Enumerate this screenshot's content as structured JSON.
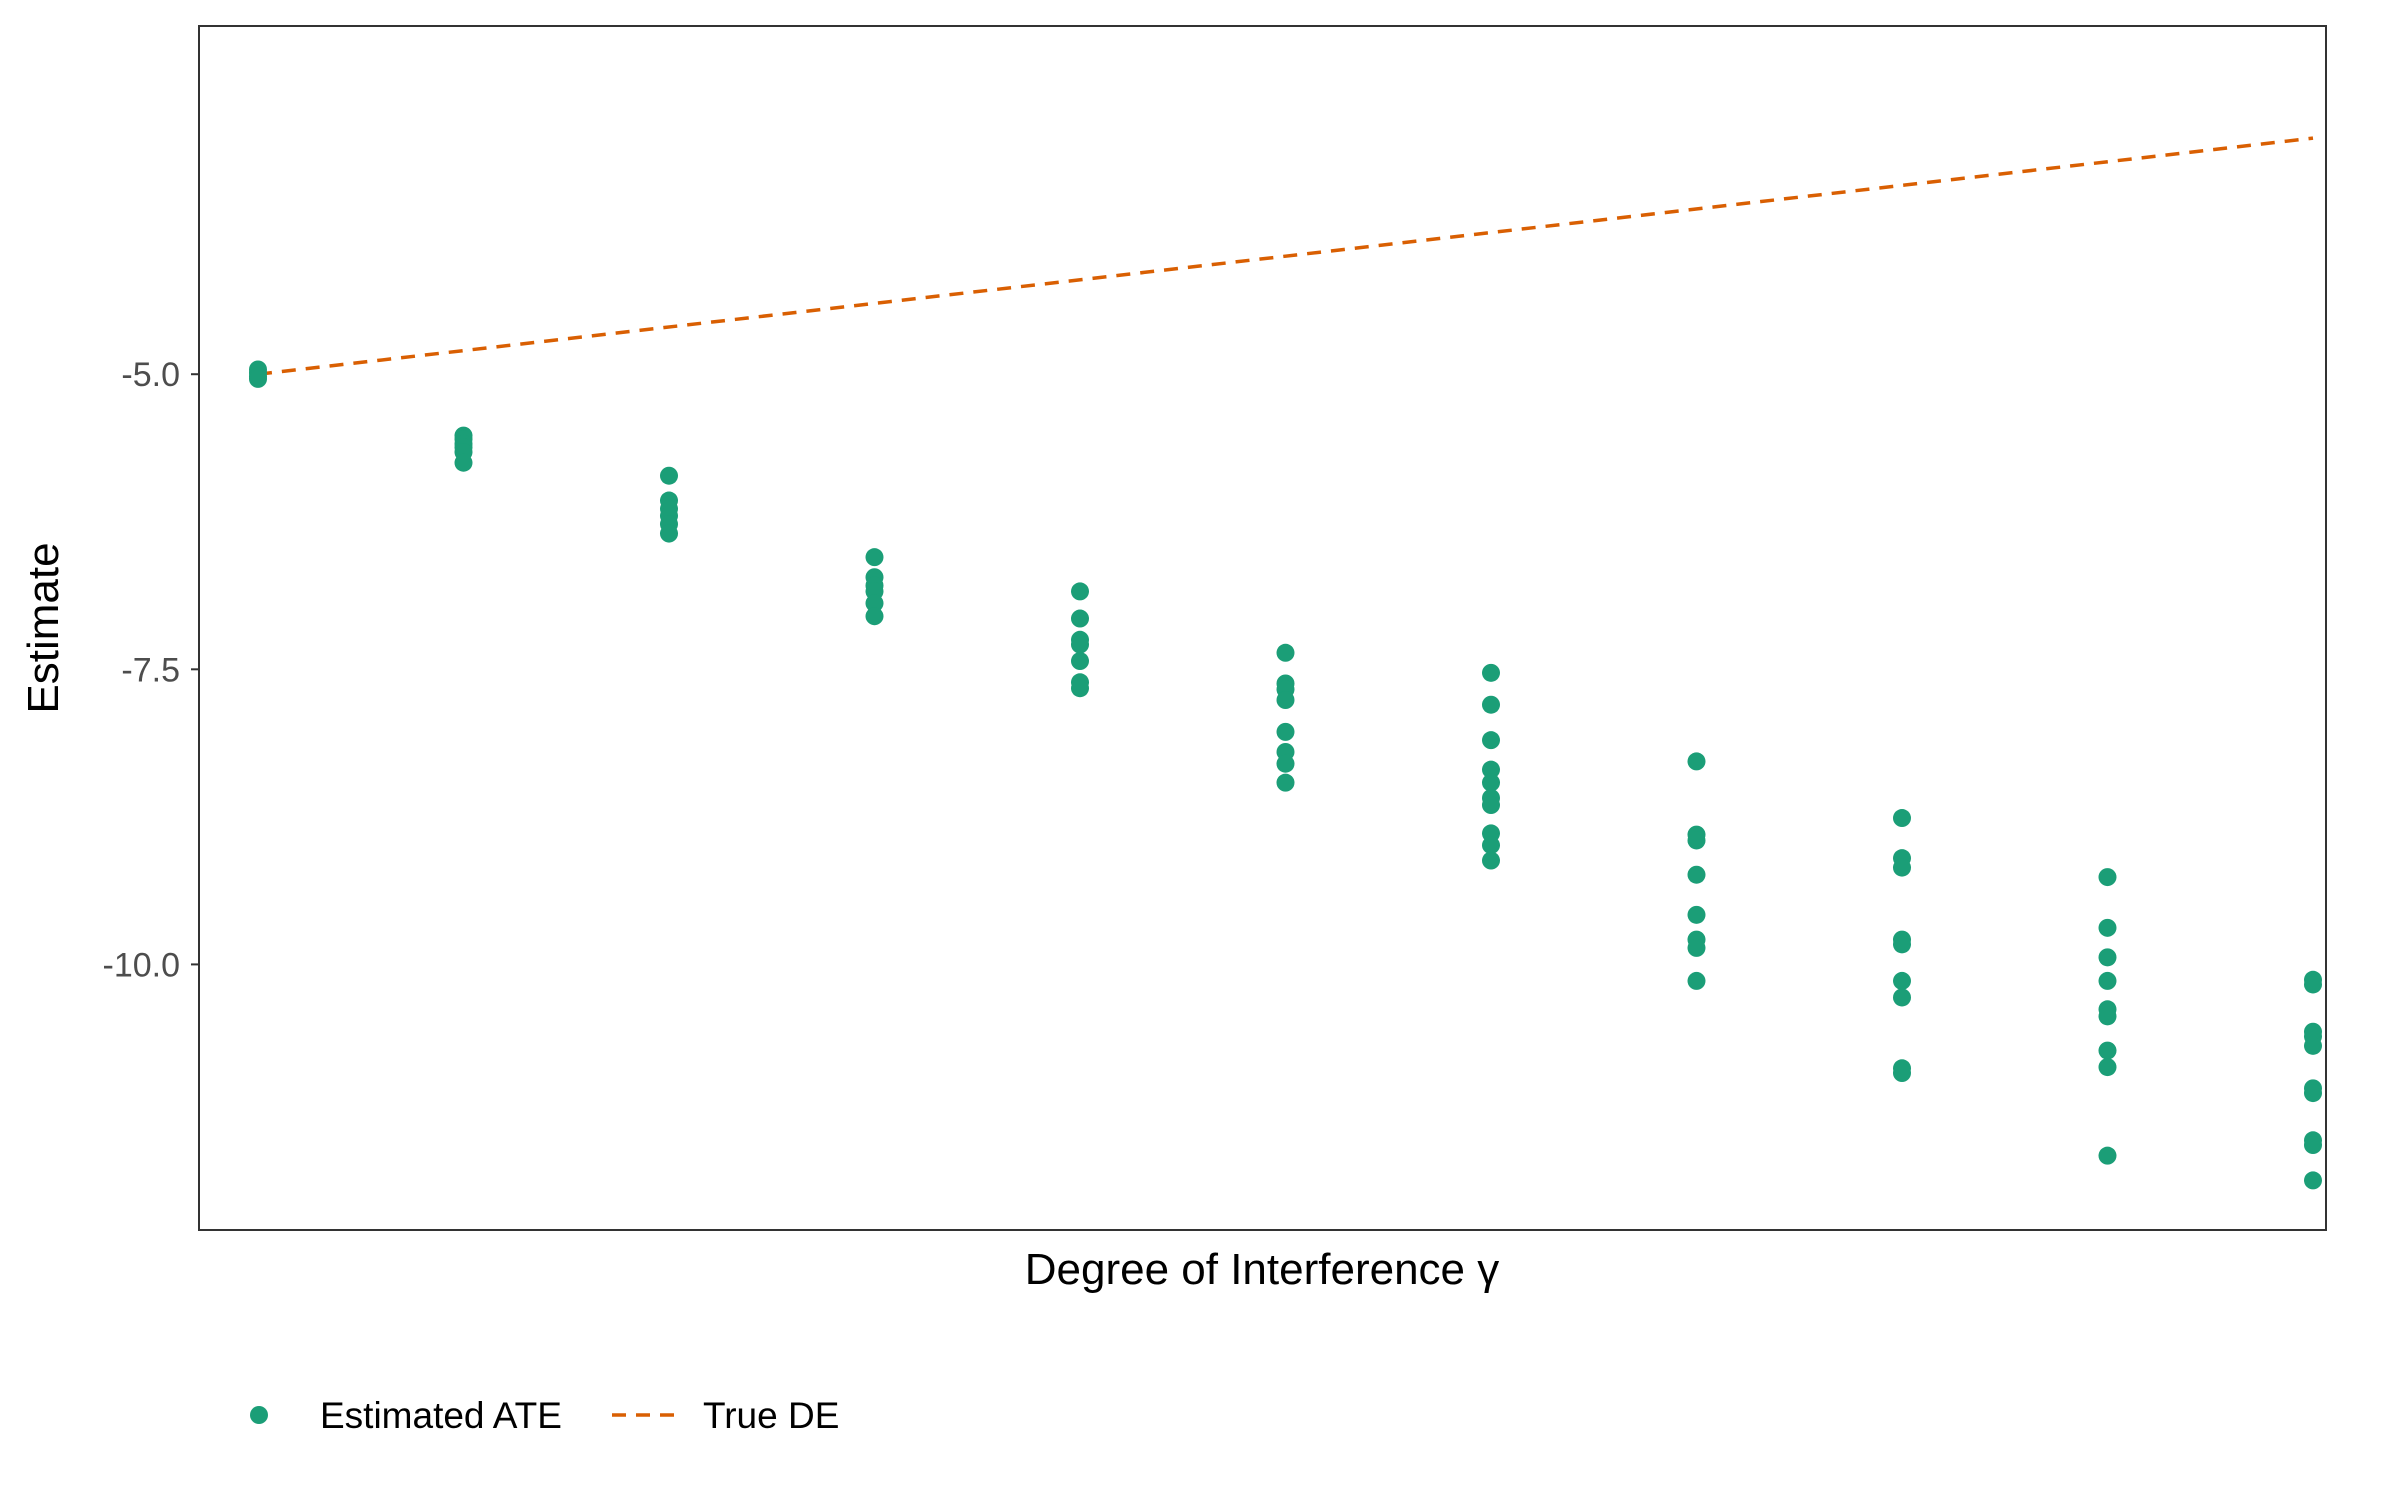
{
  "colors": {
    "points": "#1b9e77",
    "true_line": "#d95f02",
    "axis_text": "#4d4d4d",
    "frame": "#333333"
  },
  "chart_data": {
    "type": "scatter",
    "title": "",
    "xlabel": "Degree of Interference γ",
    "ylabel": "Estimate",
    "xlim": [
      0.0,
      1.0
    ],
    "ylim": [
      -12.25,
      -2.05
    ],
    "y_ticks": [
      {
        "value": -5.0,
        "label": "-5.0"
      },
      {
        "value": -7.5,
        "label": "-7.5"
      },
      {
        "value": -10.0,
        "label": "-10.0"
      }
    ],
    "x_ticks_shown": false,
    "grid": false,
    "legend": {
      "position": "bottom-left",
      "entries": [
        {
          "label": "Estimated ATE",
          "marker": "point"
        },
        {
          "label": "True DE",
          "marker": "dashed-line"
        }
      ]
    },
    "series": [
      {
        "name": "Estimated ATE",
        "kind": "points",
        "points": [
          [
            0.0,
            -4.96
          ],
          [
            0.0,
            -4.99
          ],
          [
            0.0,
            -5.02
          ],
          [
            0.0,
            -5.04
          ],
          [
            0.1,
            -5.52
          ],
          [
            0.1,
            -5.55
          ],
          [
            0.1,
            -5.59
          ],
          [
            0.1,
            -5.62
          ],
          [
            0.1,
            -5.66
          ],
          [
            0.1,
            -5.75
          ],
          [
            0.2,
            -5.86
          ],
          [
            0.2,
            -6.07
          ],
          [
            0.2,
            -6.14
          ],
          [
            0.2,
            -6.2
          ],
          [
            0.2,
            -6.27
          ],
          [
            0.2,
            -6.35
          ],
          [
            0.3,
            -6.55
          ],
          [
            0.3,
            -6.72
          ],
          [
            0.3,
            -6.79
          ],
          [
            0.3,
            -6.84
          ],
          [
            0.3,
            -6.94
          ],
          [
            0.3,
            -7.05
          ],
          [
            0.4,
            -6.84
          ],
          [
            0.4,
            -7.07
          ],
          [
            0.4,
            -7.25
          ],
          [
            0.4,
            -7.29
          ],
          [
            0.4,
            -7.43
          ],
          [
            0.4,
            -7.61
          ],
          [
            0.4,
            -7.66
          ],
          [
            0.5,
            -7.36
          ],
          [
            0.5,
            -7.62
          ],
          [
            0.5,
            -7.67
          ],
          [
            0.5,
            -7.76
          ],
          [
            0.5,
            -8.03
          ],
          [
            0.5,
            -8.2
          ],
          [
            0.5,
            -8.3
          ],
          [
            0.5,
            -8.46
          ],
          [
            0.6,
            -7.53
          ],
          [
            0.6,
            -7.8
          ],
          [
            0.6,
            -8.1
          ],
          [
            0.6,
            -8.35
          ],
          [
            0.6,
            -8.46
          ],
          [
            0.6,
            -8.59
          ],
          [
            0.6,
            -8.65
          ],
          [
            0.6,
            -8.89
          ],
          [
            0.6,
            -8.99
          ],
          [
            0.6,
            -9.12
          ],
          [
            0.7,
            -8.28
          ],
          [
            0.7,
            -8.9
          ],
          [
            0.7,
            -8.95
          ],
          [
            0.7,
            -9.24
          ],
          [
            0.7,
            -9.58
          ],
          [
            0.7,
            -9.79
          ],
          [
            0.7,
            -9.86
          ],
          [
            0.7,
            -10.14
          ],
          [
            0.8,
            -8.76
          ],
          [
            0.8,
            -9.1
          ],
          [
            0.8,
            -9.18
          ],
          [
            0.8,
            -9.79
          ],
          [
            0.8,
            -9.83
          ],
          [
            0.8,
            -10.14
          ],
          [
            0.8,
            -10.28
          ],
          [
            0.8,
            -10.88
          ],
          [
            0.8,
            -10.92
          ],
          [
            0.9,
            -9.26
          ],
          [
            0.9,
            -9.69
          ],
          [
            0.9,
            -9.94
          ],
          [
            0.9,
            -10.14
          ],
          [
            0.9,
            -10.38
          ],
          [
            0.9,
            -10.44
          ],
          [
            0.9,
            -10.73
          ],
          [
            0.9,
            -10.87
          ],
          [
            0.9,
            -11.62
          ],
          [
            1.0,
            -10.13
          ],
          [
            1.0,
            -10.17
          ],
          [
            1.0,
            -10.57
          ],
          [
            1.0,
            -10.61
          ],
          [
            1.0,
            -10.69
          ],
          [
            1.0,
            -11.05
          ],
          [
            1.0,
            -11.09
          ],
          [
            1.0,
            -11.49
          ],
          [
            1.0,
            -11.53
          ],
          [
            1.0,
            -11.83
          ]
        ]
      },
      {
        "name": "True DE",
        "kind": "dashed-line",
        "points": [
          [
            0.0,
            -5.0
          ],
          [
            1.0,
            -3.0
          ]
        ]
      }
    ]
  }
}
